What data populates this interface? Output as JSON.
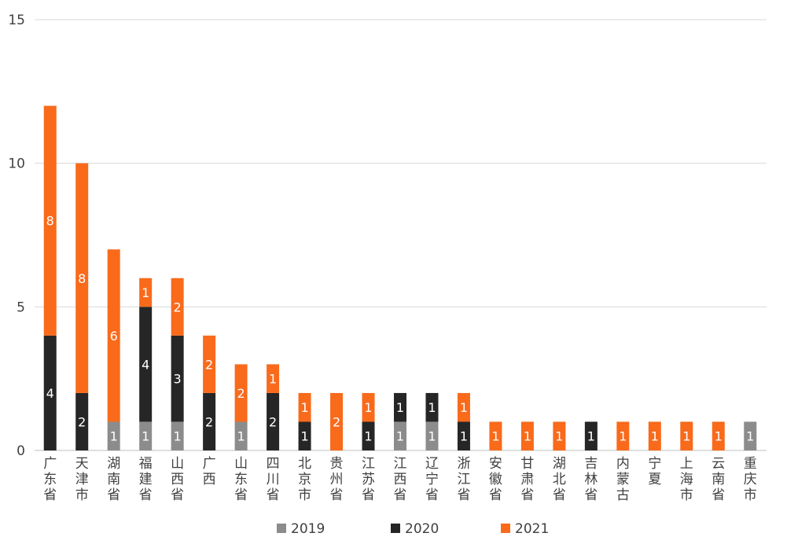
{
  "chart_data": {
    "type": "bar",
    "stacked": true,
    "title": "",
    "xlabel": "",
    "ylabel": "",
    "ylim": [
      0,
      15
    ],
    "yticks": [
      0,
      5,
      10,
      15
    ],
    "grid": true,
    "legend_position": "bottom",
    "categories": [
      "广东省",
      "天津市",
      "湖南省",
      "福建省",
      "山西省",
      "广西",
      "山东省",
      "四川省",
      "北京市",
      "贵州省",
      "江苏省",
      "江西省",
      "辽宁省",
      "浙江省",
      "安徽省",
      "甘肃省",
      "湖北省",
      "吉林省",
      "内蒙古",
      "宁夏",
      "上海市",
      "云南省",
      "重庆市"
    ],
    "series": [
      {
        "name": "2019",
        "color": "#8c8c8c",
        "values": [
          0,
          0,
          1,
          1,
          1,
          0,
          1,
          0,
          0,
          0,
          0,
          1,
          1,
          0,
          0,
          0,
          0,
          0,
          0,
          0,
          0,
          0,
          1
        ]
      },
      {
        "name": "2020",
        "color": "#262626",
        "values": [
          4,
          2,
          0,
          4,
          3,
          2,
          0,
          2,
          1,
          0,
          1,
          1,
          1,
          1,
          0,
          0,
          0,
          1,
          0,
          0,
          0,
          0,
          0
        ]
      },
      {
        "name": "2021",
        "color": "#f96a1b",
        "values": [
          8,
          8,
          6,
          1,
          2,
          2,
          2,
          1,
          1,
          2,
          1,
          0,
          0,
          1,
          1,
          1,
          1,
          0,
          1,
          1,
          1,
          1,
          0
        ]
      }
    ]
  }
}
